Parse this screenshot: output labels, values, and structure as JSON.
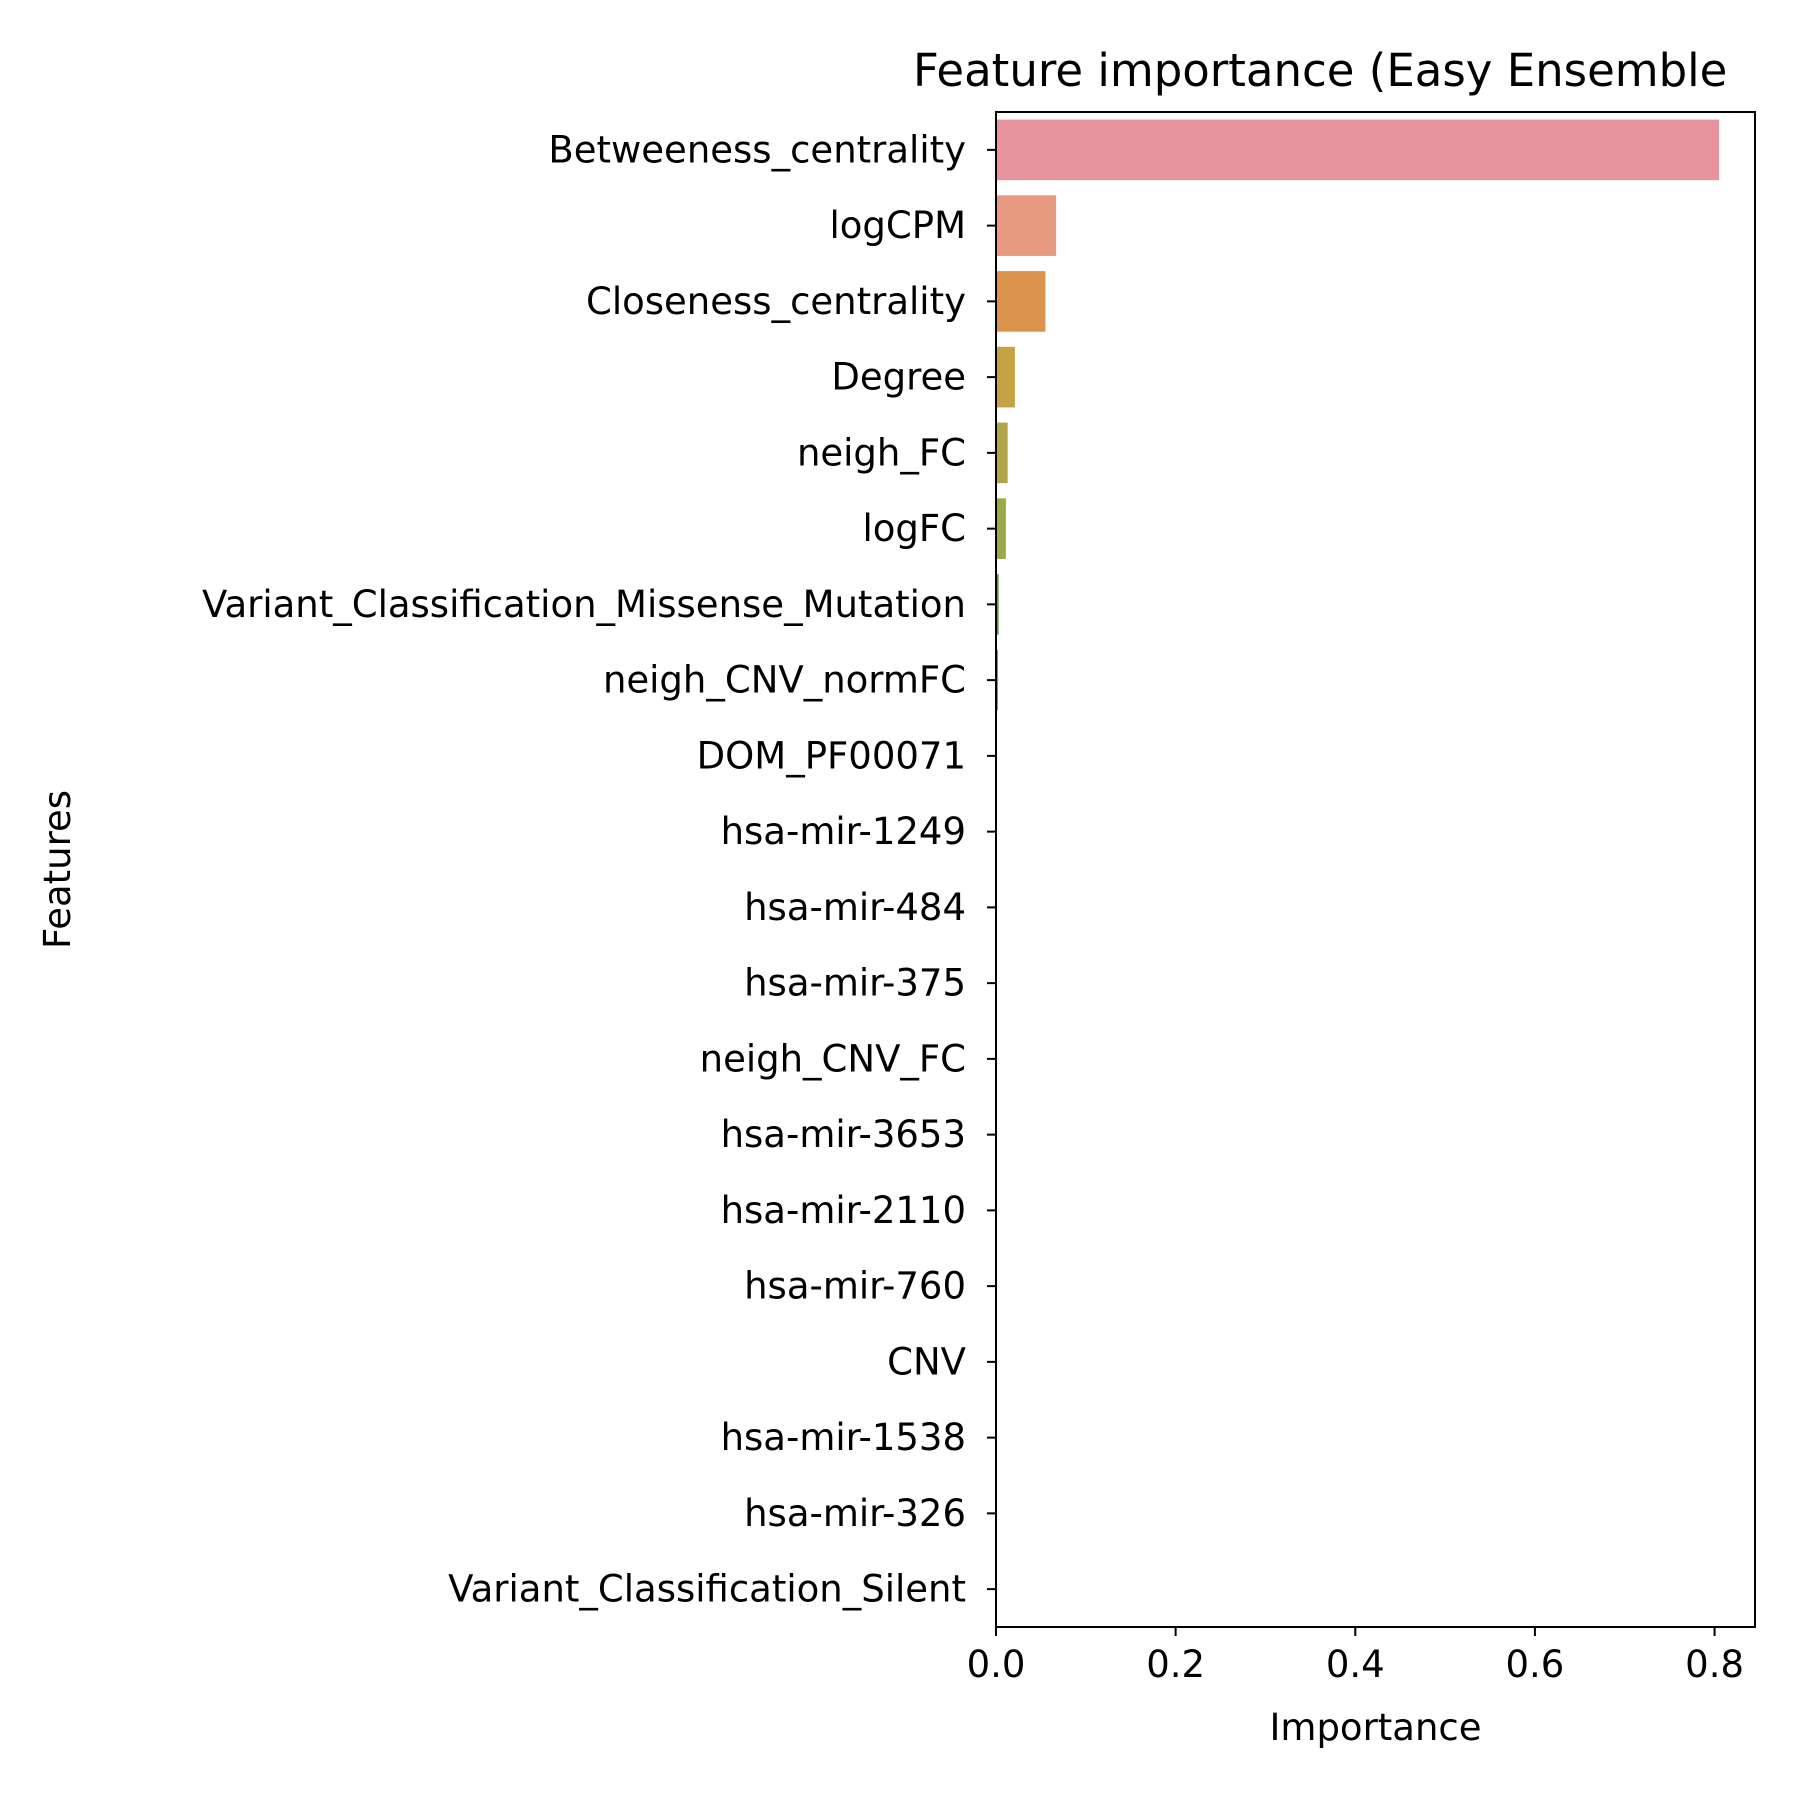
{
  "chart_data": {
    "type": "bar",
    "orientation": "horizontal",
    "title": "Feature importance (Easy Ensemble",
    "xlabel": "Importance",
    "ylabel": "Features",
    "xlim": [
      0,
      0.845
    ],
    "xticks": [
      0.0,
      0.2,
      0.4,
      0.6,
      0.8
    ],
    "xtick_labels": [
      "0.0",
      "0.2",
      "0.4",
      "0.6",
      "0.8"
    ],
    "grid": false,
    "categories": [
      "Betweeness_centrality",
      "logCPM",
      "Closeness_centrality",
      "Degree",
      "neigh_FC",
      "logFC",
      "Variant_Classification_Missense_Mutation",
      "neigh_CNV_normFC",
      "DOM_PF00071",
      "hsa-mir-1249",
      "hsa-mir-484",
      "hsa-mir-375",
      "neigh_CNV_FC",
      "hsa-mir-3653",
      "hsa-mir-2110",
      "hsa-mir-760",
      "CNV",
      "hsa-mir-1538",
      "hsa-mir-326",
      "Variant_Classification_Silent"
    ],
    "values": [
      0.805,
      0.067,
      0.055,
      0.021,
      0.013,
      0.011,
      0.003,
      0.002,
      0,
      0,
      0,
      0,
      0,
      0,
      0,
      0,
      0,
      0,
      0,
      0
    ],
    "colors": [
      "#e8949f",
      "#e79a80",
      "#db934b",
      "#c5a244",
      "#b0a548",
      "#9da84a",
      "#6b9a3c",
      "#3f8a3c",
      "#3a9a6a",
      "#3ba28a",
      "#3da39e",
      "#3ea3b0",
      "#3fa2c4",
      "#52a0d6",
      "#7f97e0",
      "#a58be8",
      "#c37fe6",
      "#d97bd2",
      "#e47fb6",
      "#e888a6"
    ]
  }
}
